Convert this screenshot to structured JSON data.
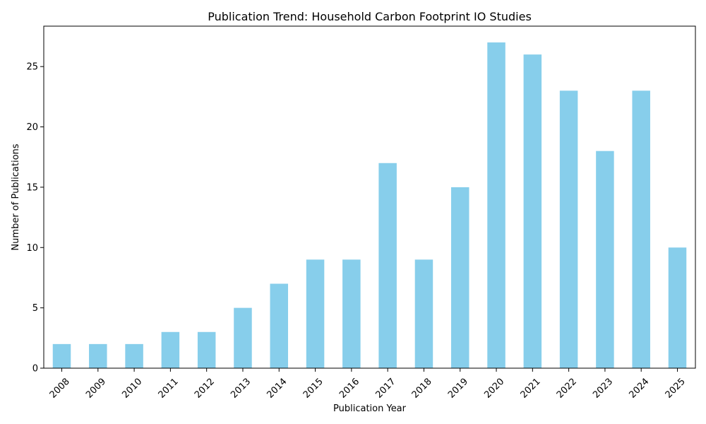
{
  "chart_data": {
    "type": "bar",
    "title": "Publication Trend: Household Carbon Footprint IO Studies",
    "xlabel": "Publication Year",
    "ylabel": "Number of Publications",
    "categories": [
      "2008",
      "2009",
      "2010",
      "2011",
      "2012",
      "2013",
      "2014",
      "2015",
      "2016",
      "2017",
      "2018",
      "2019",
      "2020",
      "2021",
      "2022",
      "2023",
      "2024",
      "2025"
    ],
    "values": [
      2,
      2,
      2,
      3,
      3,
      5,
      7,
      9,
      9,
      17,
      9,
      15,
      27,
      26,
      23,
      18,
      23,
      10
    ],
    "ylim": [
      0,
      28.35
    ],
    "yticks": [
      0,
      5,
      10,
      15,
      20,
      25
    ],
    "bar_color": "#87ceeb",
    "grid": false,
    "legend": "none"
  }
}
